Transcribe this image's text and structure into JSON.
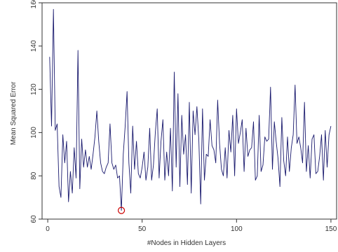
{
  "chart_data": {
    "type": "line",
    "title": "",
    "xlabel": "#Nodes in Hidden Layers",
    "ylabel": "Mean Squared Error",
    "xlim": [
      -3,
      153
    ],
    "ylim": [
      60,
      160
    ],
    "grid": false,
    "x_ticks": [
      0,
      50,
      100,
      150
    ],
    "x_tick_labels": [
      "0",
      "50",
      "100",
      "150"
    ],
    "y_ticks": [
      60,
      80,
      100,
      120,
      140,
      160
    ],
    "y_tick_labels": [
      "60",
      "80",
      "100",
      "120",
      "140",
      "160"
    ],
    "line_color": "#1a1a6e",
    "marker_color": "#cc0000",
    "series": [
      {
        "x": [
          1,
          2,
          3,
          4,
          5,
          6,
          7,
          8,
          9,
          10,
          11,
          12,
          13,
          14,
          15,
          16,
          17,
          18,
          19,
          20,
          21,
          22,
          23,
          24,
          25,
          26,
          27,
          28,
          29,
          30,
          31,
          32,
          33,
          34,
          35,
          36,
          37,
          38,
          39,
          40,
          41,
          42,
          43,
          44,
          45,
          46,
          47,
          48,
          49,
          50,
          51,
          52,
          53,
          54,
          55,
          56,
          57,
          58,
          59,
          60,
          61,
          62,
          63,
          64,
          65,
          66,
          67,
          68,
          69,
          70,
          71,
          72,
          73,
          74,
          75,
          76,
          77,
          78,
          79,
          80,
          81,
          82,
          83,
          84,
          85,
          86,
          87,
          88,
          89,
          90,
          91,
          92,
          93,
          94,
          95,
          96,
          97,
          98,
          99,
          100,
          101,
          102,
          103,
          104,
          105,
          106,
          107,
          108,
          109,
          110,
          111,
          112,
          113,
          114,
          115,
          116,
          117,
          118,
          119,
          120,
          121,
          122,
          123,
          124,
          125,
          126,
          127,
          128,
          129,
          130,
          131,
          132,
          133,
          134,
          135,
          136,
          137,
          138,
          139,
          140,
          141,
          142,
          143,
          144,
          145,
          146,
          147,
          148,
          149,
          150
        ],
        "y": [
          135,
          103,
          157,
          101,
          104,
          75,
          70,
          99,
          86,
          96,
          68,
          82,
          72,
          93,
          79,
          138,
          74,
          97,
          84,
          92,
          84,
          89,
          83,
          90,
          98,
          110,
          96,
          86,
          82,
          81,
          84,
          86,
          104,
          86,
          83,
          85,
          79,
          80,
          64,
          90,
          103,
          119,
          86,
          72,
          103,
          83,
          96,
          81,
          79,
          84,
          91,
          78,
          84,
          102,
          78,
          85,
          100,
          111,
          79,
          96,
          106,
          78,
          91,
          80,
          102,
          73,
          128,
          84,
          118,
          75,
          108,
          90,
          99,
          76,
          114,
          72,
          110,
          99,
          112,
          97,
          67,
          111,
          78,
          90,
          89,
          106,
          94,
          92,
          86,
          115,
          95,
          83,
          80,
          93,
          79,
          101,
          91,
          108,
          80,
          111,
          95,
          100,
          106,
          82,
          102,
          89,
          92,
          93,
          105,
          78,
          80,
          108,
          82,
          85,
          98,
          96,
          97,
          121,
          83,
          105,
          96,
          88,
          75,
          107,
          87,
          80,
          98,
          82,
          93,
          99,
          122,
          95,
          98,
          93,
          86,
          114,
          82,
          94,
          79,
          97,
          99,
          81,
          82,
          89,
          99,
          78,
          101,
          84,
          99,
          103
        ]
      }
    ],
    "highlight": {
      "x": 39,
      "y": 64
    }
  }
}
